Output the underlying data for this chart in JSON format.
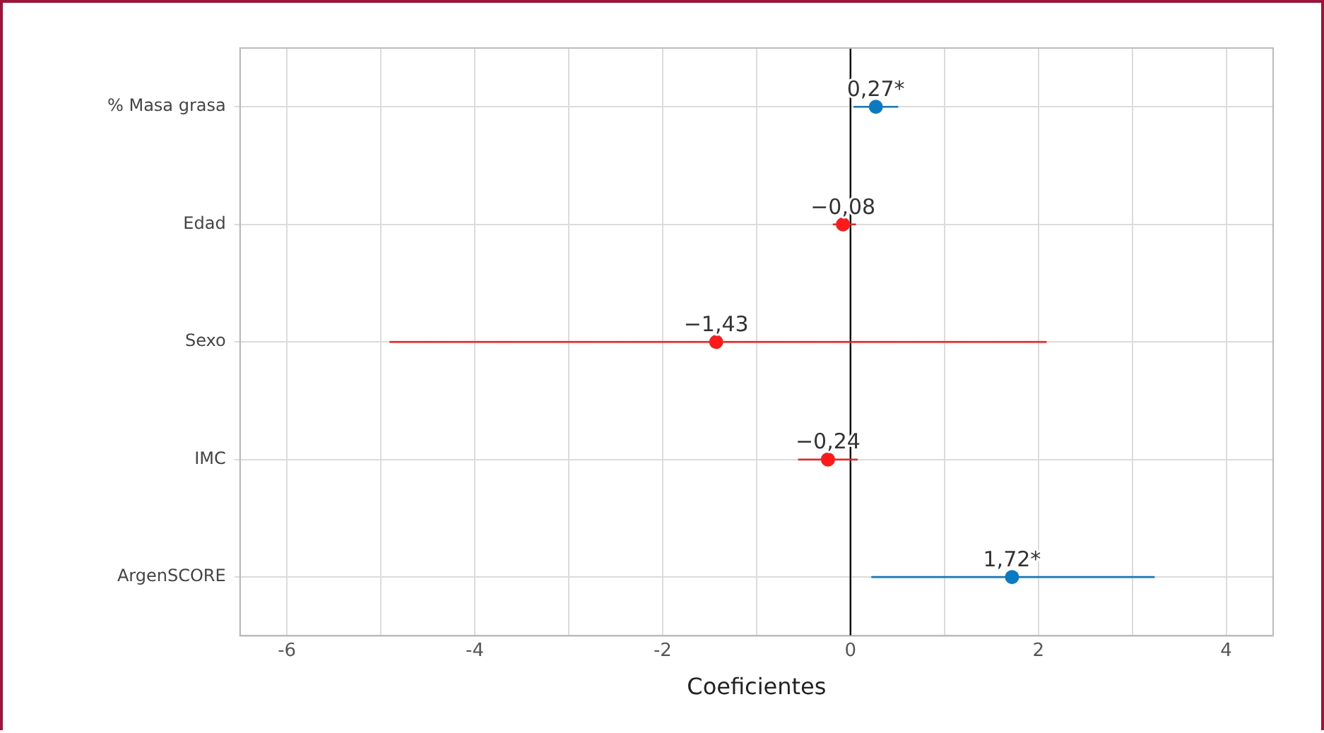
{
  "chart_data": {
    "type": "scatter",
    "orientation": "horizontal",
    "xlabel": "Coeficientes",
    "categories": [
      "% Masa grasa",
      "Edad",
      "Sexo",
      "IMC",
      "ArgenSCORE"
    ],
    "values": [
      0.27,
      -0.08,
      -1.43,
      -0.24,
      1.72
    ],
    "errors": [
      [
        0.04,
        0.5
      ],
      [
        -0.18,
        0.05
      ],
      [
        -4.9,
        2.08
      ],
      [
        -0.55,
        0.07
      ],
      [
        0.23,
        3.23
      ]
    ],
    "colors": [
      "#0a7bc2",
      "#ff1a1a",
      "#ff1a1a",
      "#ff1a1a",
      "#0a7bc2"
    ],
    "value_labels": [
      "0,27*",
      "−0,08",
      "−1,43",
      "−0,24",
      "1,72*"
    ],
    "xlim": [
      -6.5,
      4.5
    ],
    "xticks": [
      -6,
      {
        "value": -5,
        "label": null
      },
      -4,
      {
        "value": -3,
        "label": null
      },
      -2,
      {
        "value": -1,
        "label": null
      },
      0,
      {
        "value": 1,
        "label": null
      },
      2,
      {
        "value": 3,
        "label": null
      },
      4
    ],
    "ref_lines": [
      {
        "axis": "x",
        "value": 0,
        "color": "#000000"
      }
    ],
    "grid": true,
    "legend": false,
    "marker": "circle"
  }
}
